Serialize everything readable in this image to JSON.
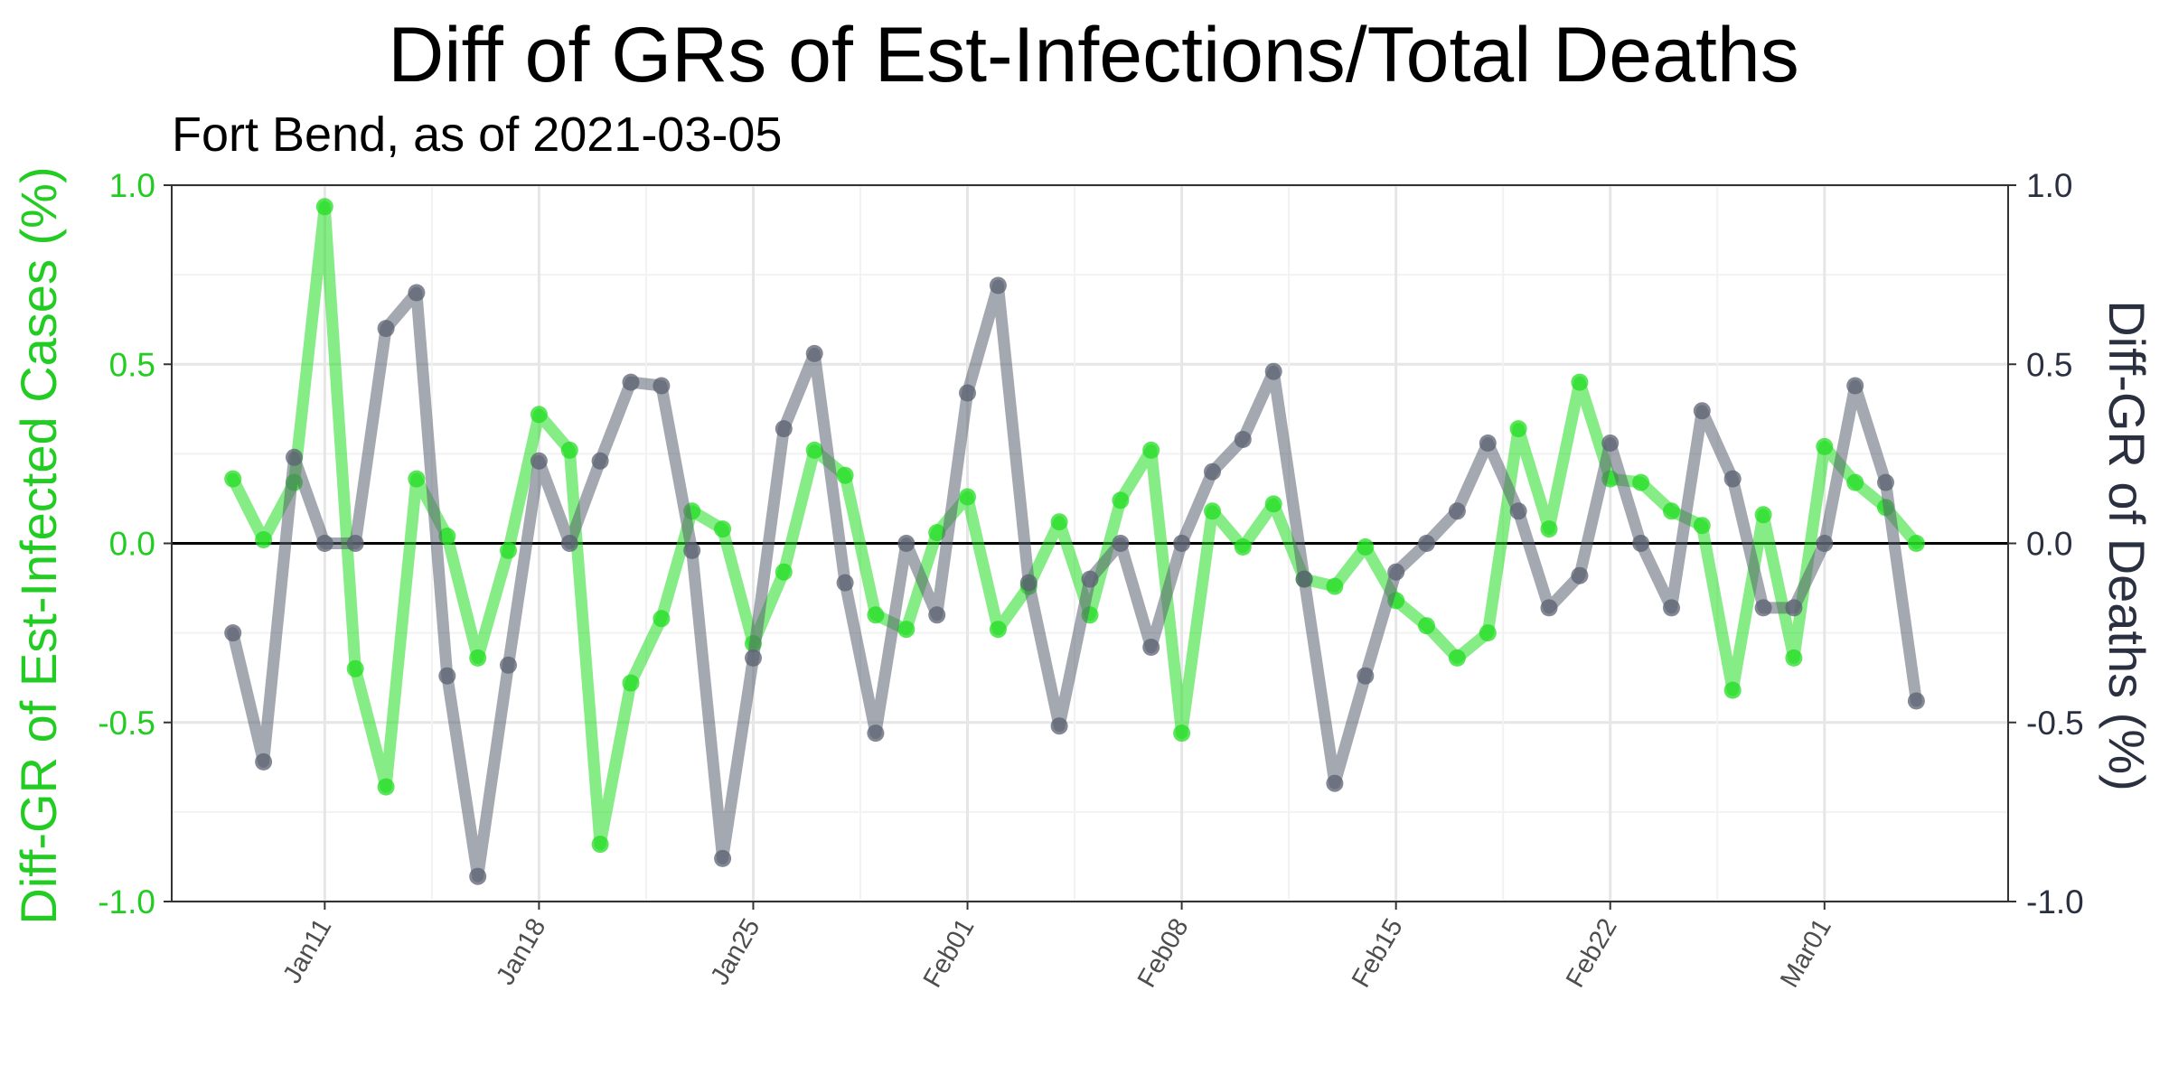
{
  "chart_data": {
    "type": "line",
    "title": "Diff of GRs of Est-Infections/Total Deaths",
    "subtitle": "Fort Bend, as of 2021-03-05",
    "ylabel_left": "Diff-GR of Est-Infected Cases (%)",
    "ylabel_right": "Diff-GR of Deaths (%)",
    "ylim": [
      -1.0,
      1.0
    ],
    "yticks": [
      1.0,
      0.5,
      0.0,
      -0.5,
      -1.0
    ],
    "ytick_labels": [
      "1.0",
      "0.5",
      "0.0",
      "-0.5",
      "-1.0"
    ],
    "x_start": "2021-01-08",
    "x_range": [
      "2021-01-06",
      "2021-03-07"
    ],
    "xticks": [
      "2021-01-11",
      "2021-01-18",
      "2021-01-25",
      "2021-02-01",
      "2021-02-08",
      "2021-02-15",
      "2021-02-22",
      "2021-03-01"
    ],
    "xtick_labels": [
      "Jan11",
      "Jan18",
      "Jan25",
      "Feb01",
      "Feb08",
      "Feb15",
      "Feb22",
      "Mar01"
    ],
    "grid": true,
    "zero_line": true,
    "colors": {
      "cases": "#22dd22",
      "deaths": "#5a6070",
      "zero": "#000000",
      "left_axis": "#22cc22",
      "right_axis": "#2a3040"
    },
    "series": [
      {
        "key": "cases",
        "values": [
          0.18,
          0.01,
          0.17,
          0.94,
          -0.35,
          -0.68,
          0.18,
          0.02,
          -0.32,
          -0.02,
          0.36,
          0.26,
          -0.84,
          -0.39,
          -0.21,
          0.09,
          0.04,
          -0.28,
          -0.08,
          0.26,
          0.19,
          -0.2,
          -0.24,
          0.03,
          0.13,
          -0.24,
          -0.12,
          0.06,
          -0.2,
          0.12,
          0.26,
          -0.53,
          0.09,
          -0.01,
          0.11,
          -0.1,
          -0.12,
          -0.01,
          -0.16,
          -0.23,
          -0.32,
          -0.25,
          0.32,
          0.04,
          0.45,
          0.18,
          0.17,
          0.09,
          0.05,
          -0.41,
          0.08,
          -0.32,
          0.27,
          0.17,
          0.1,
          0.0
        ]
      },
      {
        "key": "deaths",
        "values": [
          -0.25,
          -0.61,
          0.24,
          0.0,
          0.0,
          0.6,
          0.7,
          -0.37,
          -0.93,
          -0.34,
          0.23,
          0.0,
          0.23,
          0.45,
          0.44,
          -0.02,
          -0.88,
          -0.32,
          0.32,
          0.53,
          -0.11,
          -0.53,
          0.0,
          -0.2,
          0.42,
          0.72,
          -0.11,
          -0.51,
          -0.1,
          0.0,
          -0.29,
          0.0,
          0.2,
          0.29,
          0.48,
          -0.1,
          -0.67,
          -0.37,
          -0.08,
          0.0,
          0.09,
          0.28,
          0.09,
          -0.18,
          -0.09,
          0.28,
          0.0,
          -0.18,
          0.37,
          0.18,
          -0.18,
          -0.18,
          0.0,
          0.44,
          0.17,
          -0.44
        ]
      }
    ]
  }
}
